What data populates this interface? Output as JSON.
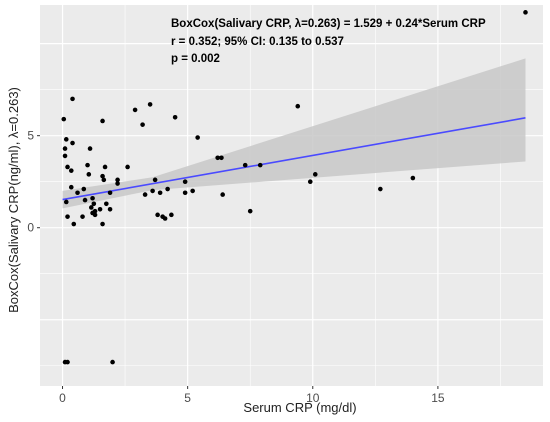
{
  "chart_data": {
    "type": "scatter",
    "title": "",
    "xlabel": "Serum CRP (mg/dl)",
    "ylabel": "BoxCox(Salivary CRP(ng/ml), λ=0.263)",
    "xlim": [
      -0.9,
      19.2
    ],
    "ylim": [
      -8.6,
      12.1
    ],
    "x_ticks": [
      0,
      5,
      10,
      15
    ],
    "y_ticks": [
      0,
      5
    ],
    "y_tick_labels": [
      "0",
      "5"
    ],
    "grid": true,
    "colors": {
      "panel": "#ebebeb",
      "grid": "#ffffff",
      "points": "#000000",
      "fit_line": "#4a4aff",
      "confidence_band": "#c8c8c8"
    },
    "annotations": [
      "BoxCox(Salivary CRP, λ=0.263) = 1.529 + 0.24*Serum CRP",
      "r = 0.352; 95% CI: 0.135 to 0.537",
      "p = 0.002"
    ],
    "fit": {
      "intercept": 1.529,
      "slope": 0.24,
      "x_range": [
        0,
        18.5
      ],
      "ci_lower": [
        1.05,
        3.6
      ],
      "ci_upper": [
        2.0,
        9.2
      ]
    },
    "points": [
      [
        0.05,
        5.9
      ],
      [
        0.1,
        4.3
      ],
      [
        0.1,
        3.9
      ],
      [
        0.15,
        4.8
      ],
      [
        0.2,
        3.3
      ],
      [
        0.15,
        1.4
      ],
      [
        0.2,
        0.6
      ],
      [
        0.35,
        3.1
      ],
      [
        0.4,
        4.6
      ],
      [
        0.4,
        7.0
      ],
      [
        0.35,
        2.2
      ],
      [
        0.45,
        0.2
      ],
      [
        0.6,
        1.9
      ],
      [
        0.8,
        0.6
      ],
      [
        0.85,
        2.1
      ],
      [
        0.9,
        1.5
      ],
      [
        1.0,
        3.4
      ],
      [
        1.05,
        2.9
      ],
      [
        1.1,
        4.3
      ],
      [
        1.15,
        1.1
      ],
      [
        1.2,
        0.8
      ],
      [
        1.2,
        1.6
      ],
      [
        1.25,
        1.3
      ],
      [
        1.3,
        0.7
      ],
      [
        1.3,
        0.9
      ],
      [
        1.5,
        1.0
      ],
      [
        1.6,
        2.8
      ],
      [
        1.65,
        2.6
      ],
      [
        1.6,
        5.8
      ],
      [
        1.6,
        0.2
      ],
      [
        1.7,
        3.3
      ],
      [
        1.75,
        1.3
      ],
      [
        1.9,
        1.9
      ],
      [
        1.9,
        1.0
      ],
      [
        2.2,
        2.4
      ],
      [
        2.2,
        2.6
      ],
      [
        2.6,
        3.3
      ],
      [
        2.9,
        6.4
      ],
      [
        3.2,
        5.6
      ],
      [
        3.3,
        1.8
      ],
      [
        3.5,
        6.7
      ],
      [
        3.6,
        2.0
      ],
      [
        3.7,
        2.6
      ],
      [
        3.8,
        0.7
      ],
      [
        3.9,
        1.9
      ],
      [
        4.0,
        0.6
      ],
      [
        4.1,
        0.5
      ],
      [
        4.2,
        2.1
      ],
      [
        4.35,
        0.7
      ],
      [
        4.5,
        6.0
      ],
      [
        4.9,
        1.9
      ],
      [
        4.9,
        2.5
      ],
      [
        5.2,
        2.0
      ],
      [
        5.4,
        4.9
      ],
      [
        6.2,
        3.8
      ],
      [
        6.35,
        3.8
      ],
      [
        6.4,
        1.8
      ],
      [
        7.3,
        3.4
      ],
      [
        7.5,
        0.9
      ],
      [
        7.9,
        3.4
      ],
      [
        9.4,
        6.6
      ],
      [
        9.9,
        2.5
      ],
      [
        10.1,
        2.9
      ],
      [
        12.7,
        2.1
      ],
      [
        14.0,
        2.7
      ],
      [
        18.5,
        11.7
      ],
      [
        0.1,
        -7.3
      ],
      [
        0.2,
        -7.3
      ],
      [
        2.0,
        -7.3
      ]
    ]
  }
}
